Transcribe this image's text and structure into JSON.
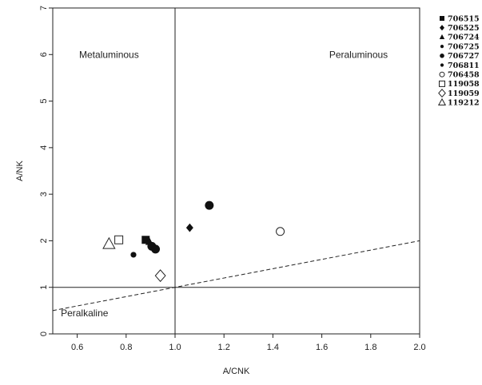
{
  "chart_data": {
    "type": "scatter",
    "xlabel": "A/CNK",
    "ylabel": "A/NK",
    "xlim": [
      0.5,
      2.0
    ],
    "ylim": [
      0,
      7
    ],
    "xticks": [
      0.6,
      0.8,
      1.0,
      1.2,
      1.4,
      1.6,
      1.8,
      2.0
    ],
    "xtick_labels": [
      "0.6",
      "0.8",
      "1.0",
      "1.2",
      "1.4",
      "1.6",
      "1.8",
      "2.0"
    ],
    "yticks": [
      0,
      1,
      2,
      3,
      4,
      5,
      6,
      7
    ],
    "ytick_labels": [
      "0",
      "1",
      "2",
      "3",
      "4",
      "5",
      "6",
      "7"
    ],
    "grid": false,
    "legend_position": "right",
    "regions": [
      {
        "name": "Metaluminous",
        "x": 0.73,
        "y": 6.0
      },
      {
        "name": "Peraluminous",
        "x": 1.75,
        "y": 6.0
      },
      {
        "name": "Peralkaline",
        "x": 0.63,
        "y": 0.45
      }
    ],
    "reference_lines": [
      {
        "kind": "vertical",
        "x": 1.0,
        "style": "solid"
      },
      {
        "kind": "horizontal",
        "y": 1.0,
        "style": "solid"
      },
      {
        "kind": "segment",
        "x1": 0.5,
        "y1": 0.5,
        "x2": 2.0,
        "y2": 2.0,
        "style": "dashed"
      }
    ],
    "series": [
      {
        "name": "706515",
        "marker": "filled-square",
        "points": [
          [
            0.88,
            2.02
          ]
        ]
      },
      {
        "name": "706525",
        "marker": "filled-diamond",
        "points": [
          [
            1.06,
            2.28
          ]
        ]
      },
      {
        "name": "706724",
        "marker": "filled-triangle",
        "points": [
          [
            0.895,
            1.98
          ]
        ]
      },
      {
        "name": "706725",
        "marker": "small-filled-circle",
        "points": [
          [
            0.83,
            1.7
          ]
        ]
      },
      {
        "name": "706727",
        "marker": "filled-circle",
        "points": [
          [
            0.905,
            1.88
          ],
          [
            0.92,
            1.82
          ],
          [
            1.14,
            2.76
          ]
        ]
      },
      {
        "name": "706811",
        "marker": "small-filled-circle",
        "points": []
      },
      {
        "name": "706458",
        "marker": "open-circle",
        "points": [
          [
            1.43,
            2.2
          ]
        ]
      },
      {
        "name": "119058",
        "marker": "open-square",
        "points": [
          [
            0.77,
            2.02
          ]
        ]
      },
      {
        "name": "119059",
        "marker": "open-diamond",
        "points": [
          [
            0.94,
            1.25
          ]
        ]
      },
      {
        "name": "119212",
        "marker": "open-triangle",
        "points": [
          [
            0.73,
            1.93
          ]
        ]
      }
    ]
  }
}
